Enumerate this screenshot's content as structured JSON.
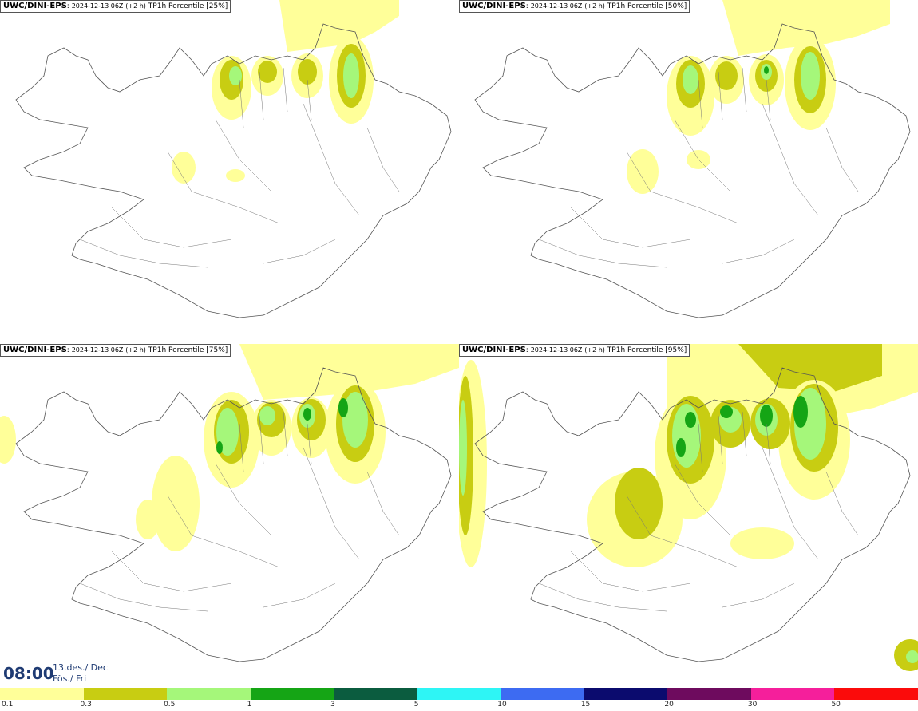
{
  "panels": [
    {
      "model": "UWC/DINI-EPS",
      "sep": ":",
      "run": "2024-12-13 06Z",
      "offset": "(+2 h)",
      "field": "TP1h Percentile [25%]"
    },
    {
      "model": "UWC/DINI-EPS",
      "sep": ":",
      "run": "2024-12-13 06Z",
      "offset": "(+2 h)",
      "field": "TP1h Percentile [50%]"
    },
    {
      "model": "UWC/DINI-EPS",
      "sep": ":",
      "run": "2024-12-13 06Z",
      "offset": "(+2 h)",
      "field": "TP1h Percentile [75%]"
    },
    {
      "model": "UWC/DINI-EPS",
      "sep": ":",
      "run": "2024-12-13 06Z",
      "offset": "(+2 h)",
      "field": "TP1h Percentile [95%]"
    }
  ],
  "valid_time": {
    "time": "08:00",
    "date_line1": "13.des./ Dec",
    "date_line2": "Fös./ Fri"
  },
  "legend": {
    "ticks": [
      "0.1",
      "0.3",
      "0.5",
      "1",
      "3",
      "5",
      "10",
      "15",
      "20",
      "30",
      "50"
    ],
    "colors": [
      "#ffff99",
      "#c8cd12",
      "#a5f77a",
      "#15a515",
      "#0b5c3f",
      "#2ef5f5",
      "#3d6bf2",
      "#0b0b6e",
      "#6e0b5e",
      "#f51f9b",
      "#fb0b0b"
    ]
  },
  "colors": {
    "light": "#ffff99",
    "medium": "#c8cd12",
    "lightgreen": "#a5f77a",
    "green": "#15a515",
    "coast": "#555555",
    "title_text": "#1f3b73"
  }
}
